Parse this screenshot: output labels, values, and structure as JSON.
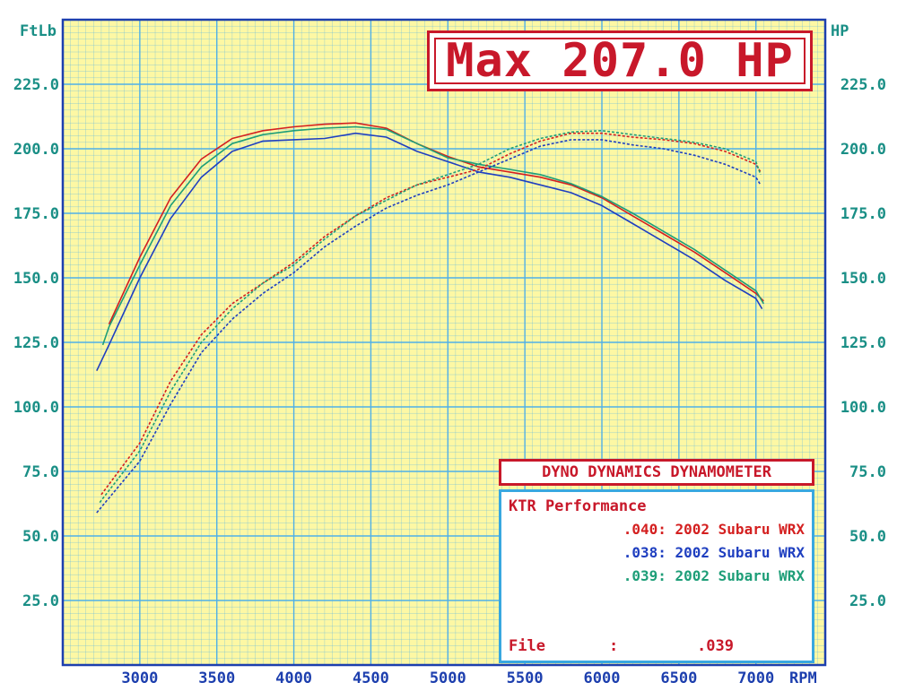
{
  "header": {
    "max_label": "Max 207.0 HP",
    "dyno_title": "DYNO DYNAMICS DYNAMOMETER"
  },
  "info": {
    "company": "KTR Performance",
    "runs": [
      {
        "id": ".040",
        "label": "2002 Subaru WRX",
        "color": "#d42020"
      },
      {
        "id": ".038",
        "label": "2002 Subaru WRX",
        "color": "#1f3fc0"
      },
      {
        "id": ".039",
        "label": "2002 Subaru WRX",
        "color": "#1e9e78"
      }
    ],
    "file_label": "File",
    "file_colon": ":",
    "file_value": ".039"
  },
  "colors": {
    "plot_bg": "#fdf8a4",
    "grid": "#4fb0e8",
    "frame": "#1d3fae",
    "torque_axis_color": "#1a8f86",
    "hp_axis_color": "#1a8f86",
    "rpm_axis_color": "#1d3fae"
  },
  "chart_data": {
    "type": "line",
    "xlabel": "RPM",
    "ylabel_left": "FtLb",
    "ylabel_right": "HP",
    "xlim": [
      2500,
      7450
    ],
    "ylim": [
      0,
      250
    ],
    "x_ticks": [
      3000,
      3500,
      4000,
      4500,
      5000,
      5500,
      6000,
      6500,
      7000
    ],
    "y_ticks_left": [
      "25.0",
      "50.0",
      "75.0",
      "100.0",
      "125.0",
      "150.0",
      "175.0",
      "200.0",
      "225.0"
    ],
    "y_ticks_right": [
      "25.0",
      "50.0",
      "75.0",
      "100.0",
      "125.0",
      "150.0",
      "175.0",
      "200.0",
      "225.0"
    ],
    "grid": true,
    "series": [
      {
        "name": ".040: 2002 Subaru WRX",
        "measure": "torque",
        "color": "#d42020",
        "style": "solid",
        "x": [
          2800,
          3000,
          3200,
          3400,
          3600,
          3800,
          4000,
          4200,
          4400,
          4600,
          4800,
          5000,
          5200,
          5400,
          5600,
          5800,
          6000,
          6200,
          6400,
          6600,
          6800,
          7000,
          7050
        ],
        "y": [
          132,
          158,
          181,
          196,
          204,
          207,
          208.5,
          209.5,
          210,
          208,
          202,
          197,
          193,
          191,
          189,
          186,
          181,
          174,
          167,
          160,
          152,
          144,
          141
        ]
      },
      {
        "name": ".038: 2002 Subaru WRX",
        "measure": "torque",
        "color": "#1f3fc0",
        "style": "solid",
        "x": [
          2720,
          2800,
          3000,
          3200,
          3400,
          3600,
          3800,
          4000,
          4200,
          4400,
          4600,
          4800,
          5000,
          5200,
          5400,
          5600,
          5800,
          6000,
          6200,
          6400,
          6600,
          6800,
          7000,
          7040
        ],
        "y": [
          114,
          124,
          150,
          173,
          189,
          199,
          203,
          203.5,
          204,
          206,
          204.5,
          199,
          195,
          191,
          189,
          186,
          183,
          178,
          171,
          164,
          157,
          149,
          142,
          138
        ]
      },
      {
        "name": ".039: 2002 Subaru WRX",
        "measure": "torque",
        "color": "#1e9e78",
        "style": "solid",
        "x": [
          2760,
          2800,
          3000,
          3200,
          3400,
          3600,
          3800,
          4000,
          4200,
          4400,
          4600,
          4800,
          5000,
          5200,
          5400,
          5600,
          5800,
          6000,
          6200,
          6400,
          6600,
          6800,
          7000,
          7050
        ],
        "y": [
          124,
          131,
          155,
          178,
          193,
          202,
          205.5,
          207,
          208,
          208.5,
          207.5,
          202,
          196.5,
          194,
          192,
          190,
          186.5,
          181.5,
          175,
          168,
          161,
          153,
          145,
          140
        ]
      },
      {
        "name": ".040: 2002 Subaru WRX",
        "measure": "power",
        "color": "#d42020",
        "style": "dotted",
        "x": [
          2750,
          3000,
          3200,
          3400,
          3600,
          3800,
          4000,
          4200,
          4400,
          4600,
          4800,
          5000,
          5200,
          5400,
          5600,
          5800,
          6000,
          6200,
          6400,
          6600,
          6800,
          7000,
          7030
        ],
        "y": [
          66,
          86,
          110,
          128,
          140,
          148,
          156,
          166,
          174,
          181,
          186,
          189,
          192,
          198,
          203,
          206,
          206,
          204.5,
          203.5,
          202,
          199,
          194,
          191
        ]
      },
      {
        "name": ".038: 2002 Subaru WRX",
        "measure": "power",
        "color": "#1f3fc0",
        "style": "dotted",
        "x": [
          2720,
          3000,
          3200,
          3400,
          3600,
          3800,
          4000,
          4200,
          4400,
          4600,
          4800,
          5000,
          5200,
          5400,
          5600,
          5800,
          6000,
          6200,
          6400,
          6600,
          6800,
          7000,
          7030
        ],
        "y": [
          59,
          79,
          101,
          121,
          134,
          144,
          152,
          162,
          170,
          177,
          182,
          186,
          191,
          196,
          201,
          203.5,
          203.5,
          201.5,
          200,
          197.5,
          194,
          189,
          186
        ]
      },
      {
        "name": ".039: 2002 Subaru WRX",
        "measure": "power",
        "color": "#1e9e78",
        "style": "dotted",
        "x": [
          2740,
          3000,
          3200,
          3400,
          3600,
          3800,
          4000,
          4200,
          4400,
          4600,
          4800,
          5000,
          5200,
          5400,
          5600,
          5800,
          6000,
          6200,
          6400,
          6600,
          6800,
          7000,
          7030
        ],
        "y": [
          63,
          83,
          106,
          125,
          138,
          148,
          155,
          165,
          174,
          180,
          186,
          190,
          194,
          200,
          204,
          206.5,
          207,
          205.5,
          204,
          202.5,
          200,
          195,
          190
        ]
      }
    ],
    "annotations": [
      "Max 207.0 HP"
    ]
  }
}
